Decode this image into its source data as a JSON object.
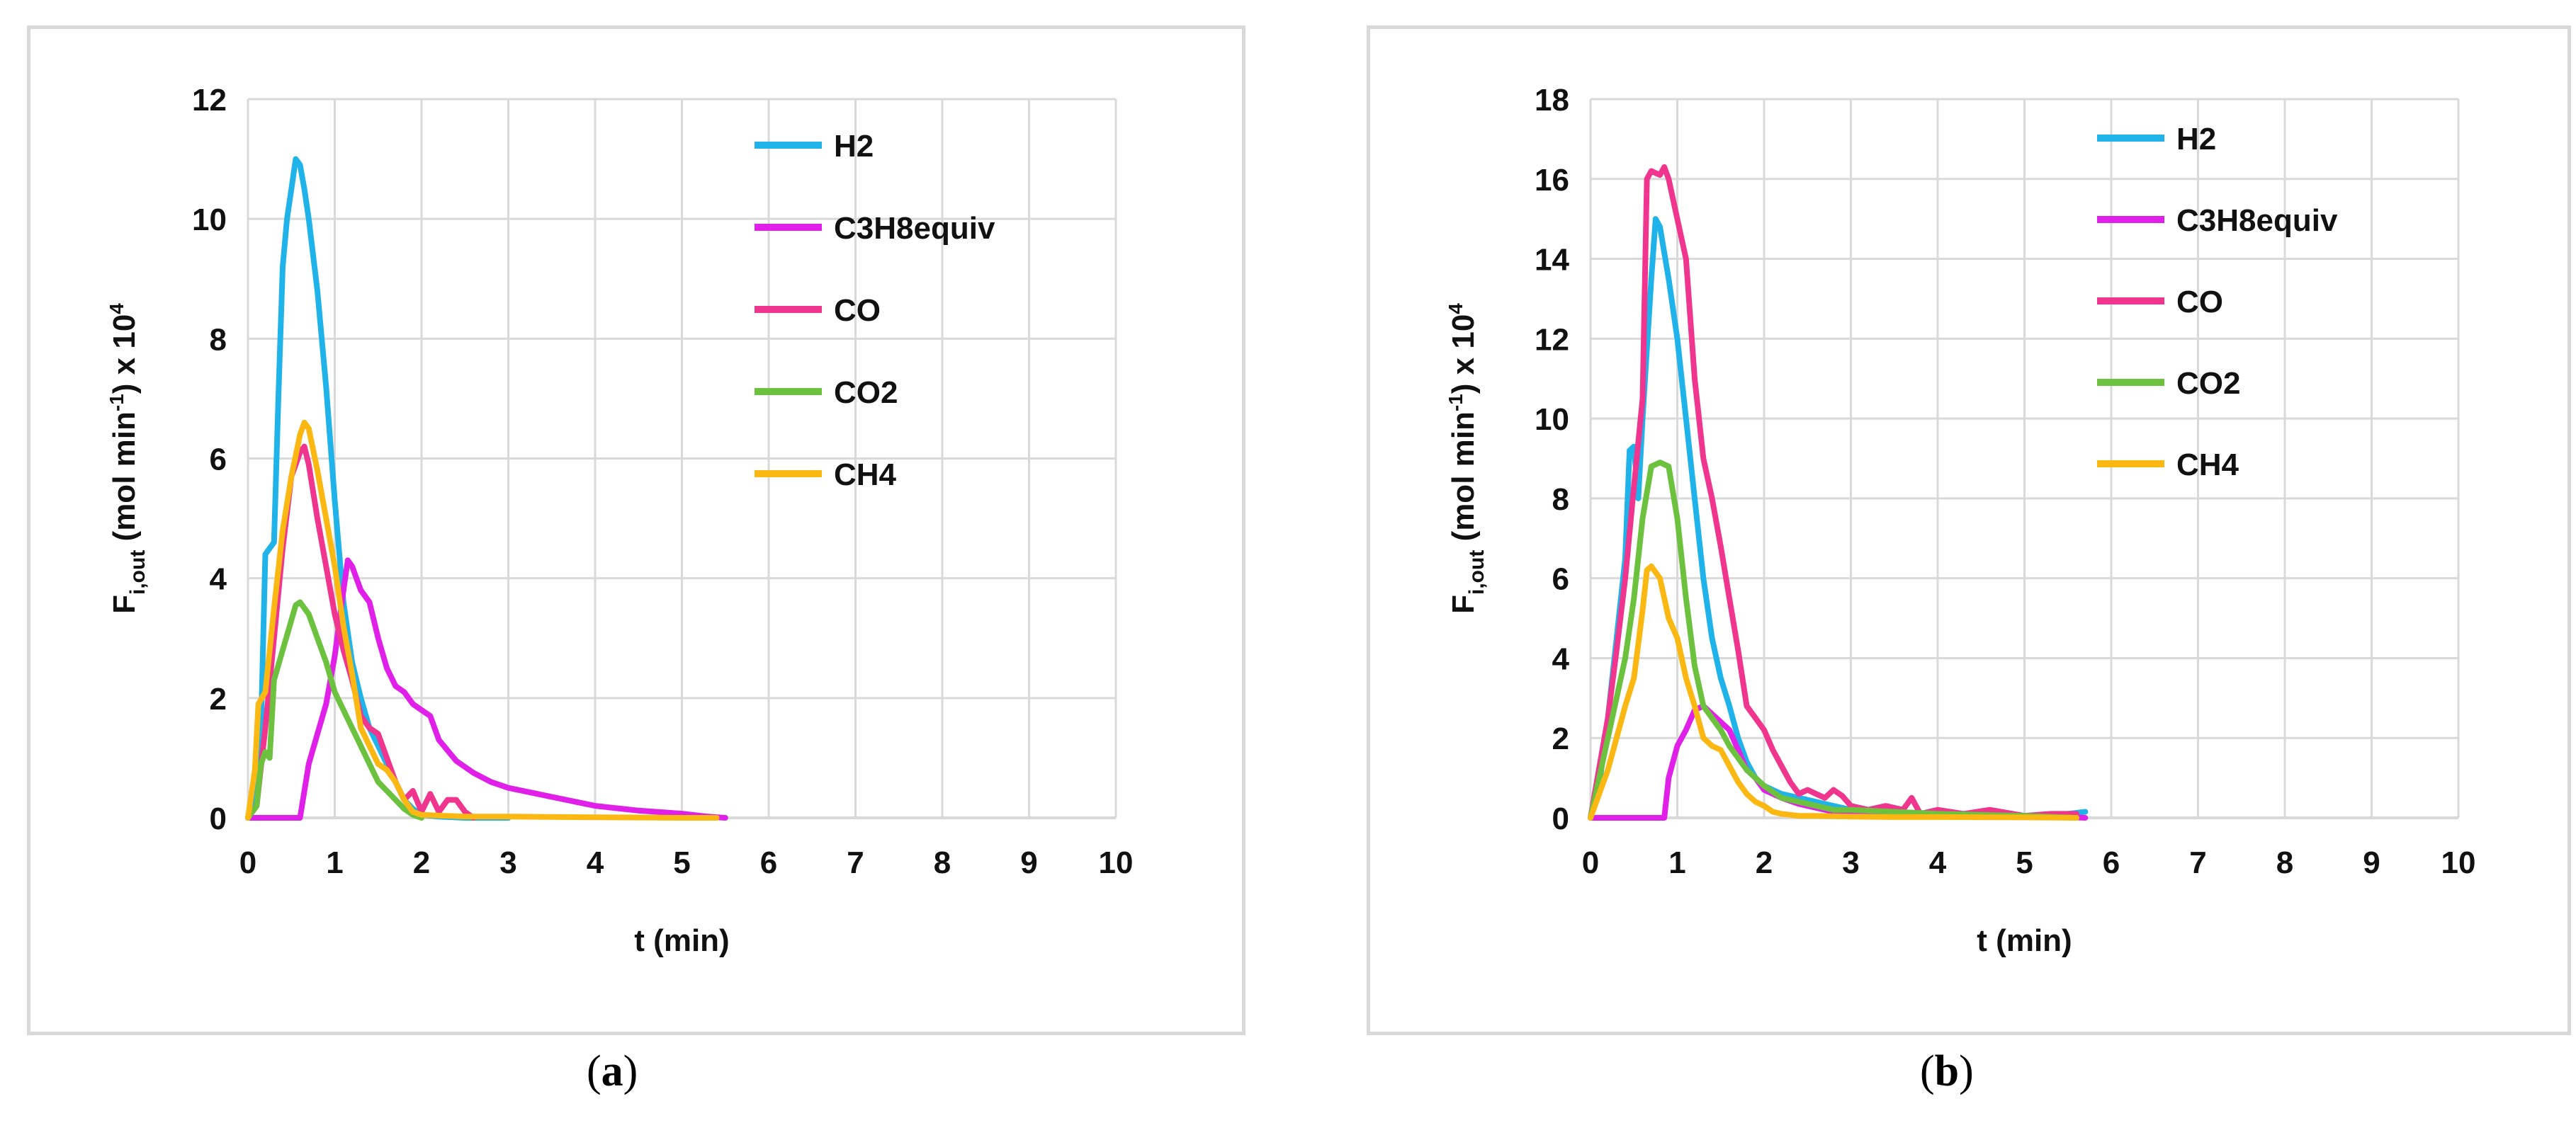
{
  "figure": {
    "panel_labels": [
      "a",
      "b"
    ]
  },
  "chart_data": [
    {
      "type": "line",
      "panel": "a",
      "title": "",
      "xlabel": "t (min)",
      "ylabel": "F",
      "ylabel_sub": "i,out",
      "ylabel_rest": " (mol min",
      "ylabel_sup1": "-1",
      "ylabel_rest2": ") x 10",
      "ylabel_sup2": "4",
      "xlim": [
        0,
        10
      ],
      "ylim": [
        0,
        12
      ],
      "xticks": [
        0,
        1,
        2,
        3,
        4,
        5,
        6,
        7,
        8,
        9,
        10
      ],
      "yticks": [
        0,
        2,
        4,
        6,
        8,
        10,
        12
      ],
      "grid": true,
      "legend_position": "top-right",
      "series": [
        {
          "name": "H2",
          "color": "#1fb3ea",
          "x": [
            0,
            0.1,
            0.15,
            0.2,
            0.25,
            0.3,
            0.35,
            0.4,
            0.45,
            0.5,
            0.55,
            0.6,
            0.65,
            0.7,
            0.8,
            0.9,
            1.0,
            1.1,
            1.2,
            1.3,
            1.4,
            1.5,
            1.6,
            1.7,
            1.8,
            1.9,
            2.0,
            2.2,
            2.5,
            3.0
          ],
          "y": [
            0,
            0.4,
            1.5,
            4.4,
            4.5,
            4.6,
            7.0,
            9.2,
            10.0,
            10.5,
            11.0,
            10.9,
            10.5,
            10.0,
            8.8,
            7.2,
            5.3,
            3.6,
            2.6,
            2.0,
            1.5,
            1.2,
            0.9,
            0.6,
            0.3,
            0.15,
            0.05,
            0.02,
            0,
            0
          ]
        },
        {
          "name": "C3H8equiv",
          "color": "#e020e8",
          "x": [
            0,
            0.6,
            0.7,
            0.8,
            0.9,
            1.0,
            1.1,
            1.15,
            1.2,
            1.3,
            1.4,
            1.5,
            1.6,
            1.7,
            1.8,
            1.9,
            2.0,
            2.1,
            2.2,
            2.4,
            2.6,
            2.8,
            3.0,
            3.5,
            4.0,
            4.5,
            5.0,
            5.3,
            5.5
          ],
          "y": [
            0,
            0,
            0.9,
            1.4,
            1.9,
            2.7,
            3.8,
            4.3,
            4.2,
            3.8,
            3.6,
            3.0,
            2.5,
            2.2,
            2.1,
            1.9,
            1.8,
            1.7,
            1.3,
            0.95,
            0.75,
            0.6,
            0.5,
            0.35,
            0.2,
            0.12,
            0.07,
            0.02,
            0
          ]
        },
        {
          "name": "CO",
          "color": "#f0358e",
          "x": [
            0,
            0.1,
            0.2,
            0.3,
            0.4,
            0.5,
            0.6,
            0.65,
            0.7,
            0.8,
            0.9,
            1.0,
            1.1,
            1.2,
            1.3,
            1.4,
            1.5,
            1.6,
            1.7,
            1.8,
            1.9,
            2.0,
            2.1,
            2.2,
            2.3,
            2.4,
            2.5,
            2.6
          ],
          "y": [
            0,
            0.2,
            1.5,
            3.0,
            4.5,
            5.7,
            6.1,
            6.2,
            5.9,
            5.0,
            4.2,
            3.4,
            2.8,
            2.3,
            1.7,
            1.5,
            1.4,
            1.0,
            0.6,
            0.3,
            0.45,
            0.1,
            0.4,
            0.1,
            0.3,
            0.3,
            0.1,
            0
          ]
        },
        {
          "name": "CO2",
          "color": "#6cc23e",
          "x": [
            0,
            0.1,
            0.15,
            0.2,
            0.25,
            0.3,
            0.4,
            0.5,
            0.55,
            0.6,
            0.7,
            0.8,
            0.9,
            1.0,
            1.1,
            1.2,
            1.3,
            1.4,
            1.5,
            1.6,
            1.7,
            1.8,
            1.9,
            2.0
          ],
          "y": [
            0,
            0.2,
            0.9,
            1.1,
            1.0,
            2.3,
            2.8,
            3.3,
            3.55,
            3.6,
            3.4,
            3.0,
            2.6,
            2.1,
            1.8,
            1.5,
            1.2,
            0.9,
            0.6,
            0.45,
            0.3,
            0.15,
            0.05,
            0
          ]
        },
        {
          "name": "CH4",
          "color": "#fbb813",
          "x": [
            0,
            0.08,
            0.12,
            0.2,
            0.3,
            0.4,
            0.5,
            0.6,
            0.65,
            0.7,
            0.8,
            0.9,
            1.0,
            1.1,
            1.2,
            1.3,
            1.4,
            1.5,
            1.6,
            1.7,
            1.8,
            1.9,
            2.0,
            2.5,
            3.0,
            4.0,
            5.0,
            5.4
          ],
          "y": [
            0,
            0.8,
            1.9,
            2.1,
            3.5,
            4.8,
            5.7,
            6.4,
            6.6,
            6.5,
            5.8,
            5.0,
            4.2,
            3.2,
            2.4,
            1.5,
            1.2,
            0.9,
            0.8,
            0.6,
            0.3,
            0.1,
            0.05,
            0.02,
            0.02,
            0.01,
            0,
            0
          ]
        }
      ]
    },
    {
      "type": "line",
      "panel": "b",
      "title": "",
      "xlabel": "t (min)",
      "ylabel": "F",
      "ylabel_sub": "i,out",
      "ylabel_rest": " (mol min",
      "ylabel_sup1": "-1",
      "ylabel_rest2": ") x 10",
      "ylabel_sup2": "4",
      "xlim": [
        0,
        10
      ],
      "ylim": [
        0,
        18
      ],
      "xticks": [
        0,
        1,
        2,
        3,
        4,
        5,
        6,
        7,
        8,
        9,
        10
      ],
      "yticks": [
        0,
        2,
        4,
        6,
        8,
        10,
        12,
        14,
        16,
        18
      ],
      "grid": true,
      "legend_position": "top-right",
      "series": [
        {
          "name": "H2",
          "color": "#1fb3ea",
          "x": [
            0,
            0.1,
            0.2,
            0.3,
            0.4,
            0.45,
            0.5,
            0.55,
            0.6,
            0.7,
            0.75,
            0.8,
            0.9,
            1.0,
            1.1,
            1.2,
            1.3,
            1.4,
            1.5,
            1.6,
            1.7,
            1.8,
            1.9,
            2.0,
            2.2,
            2.4,
            2.6,
            2.8,
            3.0,
            3.5,
            4.0,
            4.5,
            5.0,
            5.5,
            5.7
          ],
          "y": [
            0,
            0.8,
            2.5,
            4.5,
            6.5,
            9.2,
            9.3,
            8.0,
            10.0,
            13.5,
            15.0,
            14.8,
            13.5,
            12.0,
            10.0,
            8.0,
            6.0,
            4.5,
            3.5,
            2.8,
            2.0,
            1.4,
            1.0,
            0.8,
            0.6,
            0.5,
            0.4,
            0.3,
            0.2,
            0.15,
            0.1,
            0.1,
            0.05,
            0.1,
            0.15
          ]
        },
        {
          "name": "C3H8equiv",
          "color": "#e020e8",
          "x": [
            0,
            0.85,
            0.9,
            1.0,
            1.1,
            1.2,
            1.3,
            1.4,
            1.5,
            1.6,
            1.7,
            1.8,
            1.9,
            2.0,
            2.2,
            2.4,
            2.6,
            2.8,
            3.0,
            3.5,
            4.0,
            4.5,
            5.0,
            5.5,
            5.7
          ],
          "y": [
            0,
            0,
            1.0,
            1.8,
            2.2,
            2.7,
            2.8,
            2.6,
            2.4,
            2.2,
            1.7,
            1.2,
            1.0,
            0.7,
            0.5,
            0.35,
            0.25,
            0.15,
            0.1,
            0.08,
            0.05,
            0.03,
            0.03,
            0.02,
            0
          ]
        },
        {
          "name": "CO",
          "color": "#f0358e",
          "x": [
            0,
            0.2,
            0.3,
            0.4,
            0.5,
            0.6,
            0.65,
            0.7,
            0.8,
            0.85,
            0.9,
            1.0,
            1.1,
            1.2,
            1.3,
            1.4,
            1.5,
            1.6,
            1.7,
            1.8,
            1.9,
            2.0,
            2.1,
            2.2,
            2.3,
            2.4,
            2.5,
            2.6,
            2.7,
            2.8,
            2.9,
            3.0,
            3.2,
            3.4,
            3.6,
            3.7,
            3.8,
            4.0,
            4.3,
            4.6,
            5.0,
            5.3,
            5.6
          ],
          "y": [
            0,
            2.5,
            4.2,
            6.0,
            8.3,
            10.5,
            16.0,
            16.2,
            16.1,
            16.3,
            16.0,
            15.0,
            14.0,
            11.0,
            9.0,
            8.0,
            6.8,
            5.5,
            4.2,
            2.8,
            2.5,
            2.2,
            1.7,
            1.3,
            0.9,
            0.6,
            0.7,
            0.6,
            0.5,
            0.7,
            0.55,
            0.3,
            0.2,
            0.3,
            0.2,
            0.5,
            0.1,
            0.2,
            0.1,
            0.2,
            0.05,
            0.1,
            0.1
          ]
        },
        {
          "name": "CO2",
          "color": "#6cc23e",
          "x": [
            0,
            0.2,
            0.4,
            0.5,
            0.6,
            0.7,
            0.8,
            0.9,
            1.0,
            1.1,
            1.2,
            1.3,
            1.4,
            1.5,
            1.6,
            1.7,
            1.8,
            1.9,
            2.0,
            2.2,
            2.4,
            2.6,
            2.8,
            3.0,
            3.5,
            4.0,
            5.0,
            5.6
          ],
          "y": [
            0,
            2.0,
            4.0,
            5.5,
            7.5,
            8.8,
            8.9,
            8.8,
            7.5,
            5.5,
            3.8,
            2.8,
            2.5,
            2.2,
            1.8,
            1.5,
            1.2,
            1.0,
            0.8,
            0.5,
            0.4,
            0.3,
            0.2,
            0.2,
            0.15,
            0.1,
            0.05,
            0
          ]
        },
        {
          "name": "CH4",
          "color": "#fbb813",
          "x": [
            0,
            0.2,
            0.4,
            0.5,
            0.6,
            0.65,
            0.7,
            0.8,
            0.9,
            1.0,
            1.1,
            1.2,
            1.3,
            1.4,
            1.5,
            1.6,
            1.7,
            1.8,
            1.9,
            2.0,
            2.1,
            2.2,
            2.4,
            2.6,
            3.0,
            3.5,
            4.0,
            5.0,
            5.6
          ],
          "y": [
            0,
            1.2,
            2.8,
            3.5,
            5.2,
            6.2,
            6.3,
            6.0,
            5.0,
            4.5,
            3.5,
            2.8,
            2.0,
            1.8,
            1.7,
            1.3,
            0.9,
            0.6,
            0.4,
            0.3,
            0.15,
            0.1,
            0.05,
            0.05,
            0.03,
            0.02,
            0.02,
            0.01,
            0
          ]
        }
      ]
    }
  ]
}
